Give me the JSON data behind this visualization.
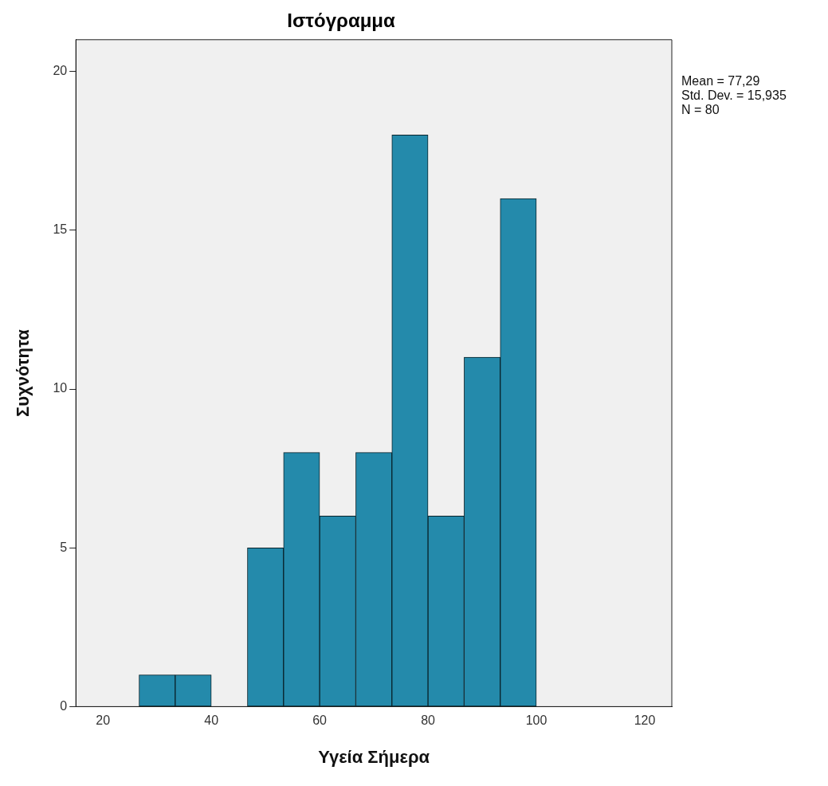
{
  "chart_data": {
    "type": "histogram",
    "title": "Ιστόγραμμα",
    "xlabel": "Υγεία Σήμερα",
    "ylabel": "Συχνότητα",
    "bins": [
      20,
      26.667,
      33.333,
      40,
      46.667,
      53.333,
      60,
      66.667,
      73.333,
      80,
      86.667,
      93.333,
      100
    ],
    "values": [
      0,
      1,
      1,
      0,
      5,
      8,
      6,
      8,
      18,
      6,
      11,
      16
    ],
    "color": "#248aab",
    "xlim": [
      15,
      125
    ],
    "xticks": [
      20,
      40,
      60,
      80,
      100,
      120
    ],
    "ylim": [
      0,
      21
    ],
    "yticks": [
      0,
      5,
      10,
      15,
      20
    ],
    "grid": false,
    "legend": false,
    "annotations": [
      "Mean = 77,29",
      "Std. Dev. = 15,935",
      "N = 80"
    ]
  }
}
